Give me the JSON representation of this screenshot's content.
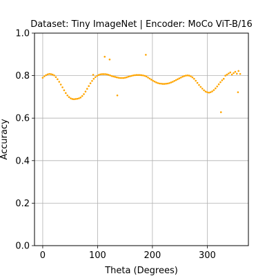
{
  "chart_data": {
    "type": "scatter",
    "title": "Dataset: Tiny ImageNet | Encoder: MoCo ViT-B/16",
    "xlabel": "Theta (Degrees)",
    "ylabel": "Accuracy",
    "xlim": [
      -15,
      375
    ],
    "ylim": [
      0,
      1
    ],
    "xticks": [
      0,
      100,
      200,
      300
    ],
    "yticks": [
      0.0,
      0.2,
      0.4,
      0.6,
      0.8,
      1.0
    ],
    "grid": true,
    "point_color": "#ffa500",
    "series": [
      {
        "x": [
          0,
          3,
          6,
          9,
          12,
          15,
          18,
          21,
          24,
          27,
          30,
          33,
          36,
          39,
          42,
          45,
          48,
          51,
          54,
          57,
          60,
          63,
          66,
          69,
          72,
          75,
          78,
          81,
          84,
          87,
          90,
          93,
          96,
          99,
          102,
          105,
          108,
          111,
          114,
          117,
          120,
          123,
          126,
          129,
          132,
          135,
          138,
          141,
          144,
          147,
          150,
          153,
          156,
          159,
          162,
          165,
          168,
          171,
          174,
          177,
          180,
          183,
          186,
          189,
          192,
          195,
          198,
          201,
          204,
          207,
          210,
          213,
          216,
          219,
          222,
          225,
          228,
          231,
          234,
          237,
          240,
          243,
          246,
          249,
          252,
          255,
          258,
          261,
          264,
          267,
          270,
          273,
          276,
          279,
          282,
          285,
          288,
          291,
          294,
          297,
          300,
          303,
          306,
          309,
          312,
          315,
          318,
          321,
          324,
          327,
          330,
          333,
          336,
          339,
          342,
          345,
          348,
          351,
          354,
          357,
          360,
          92,
          113,
          122,
          136,
          188,
          325,
          356
        ],
        "y": [
          0.79,
          0.797,
          0.802,
          0.806,
          0.808,
          0.807,
          0.805,
          0.801,
          0.793,
          0.783,
          0.771,
          0.758,
          0.745,
          0.731,
          0.718,
          0.707,
          0.699,
          0.693,
          0.69,
          0.689,
          0.69,
          0.691,
          0.693,
          0.697,
          0.704,
          0.713,
          0.725,
          0.738,
          0.751,
          0.764,
          0.775,
          0.785,
          0.793,
          0.799,
          0.803,
          0.806,
          0.807,
          0.807,
          0.807,
          0.806,
          0.804,
          0.801,
          0.798,
          0.796,
          0.794,
          0.792,
          0.79,
          0.789,
          0.789,
          0.789,
          0.79,
          0.792,
          0.795,
          0.797,
          0.799,
          0.801,
          0.802,
          0.803,
          0.803,
          0.803,
          0.802,
          0.801,
          0.799,
          0.796,
          0.791,
          0.786,
          0.781,
          0.776,
          0.772,
          0.768,
          0.765,
          0.763,
          0.762,
          0.761,
          0.761,
          0.762,
          0.763,
          0.765,
          0.768,
          0.771,
          0.775,
          0.779,
          0.783,
          0.787,
          0.791,
          0.795,
          0.798,
          0.8,
          0.801,
          0.8,
          0.797,
          0.792,
          0.785,
          0.776,
          0.766,
          0.756,
          0.747,
          0.739,
          0.731,
          0.725,
          0.722,
          0.72,
          0.722,
          0.726,
          0.732,
          0.74,
          0.749,
          0.759,
          0.769,
          0.778,
          0.785,
          0.8,
          0.805,
          0.81,
          0.815,
          0.805,
          0.812,
          0.818,
          0.809,
          0.822,
          0.808,
          0.804,
          0.889,
          0.876,
          0.707,
          0.898,
          0.628,
          0.722
        ],
        "y_trimmed_note": ""
      }
    ]
  }
}
